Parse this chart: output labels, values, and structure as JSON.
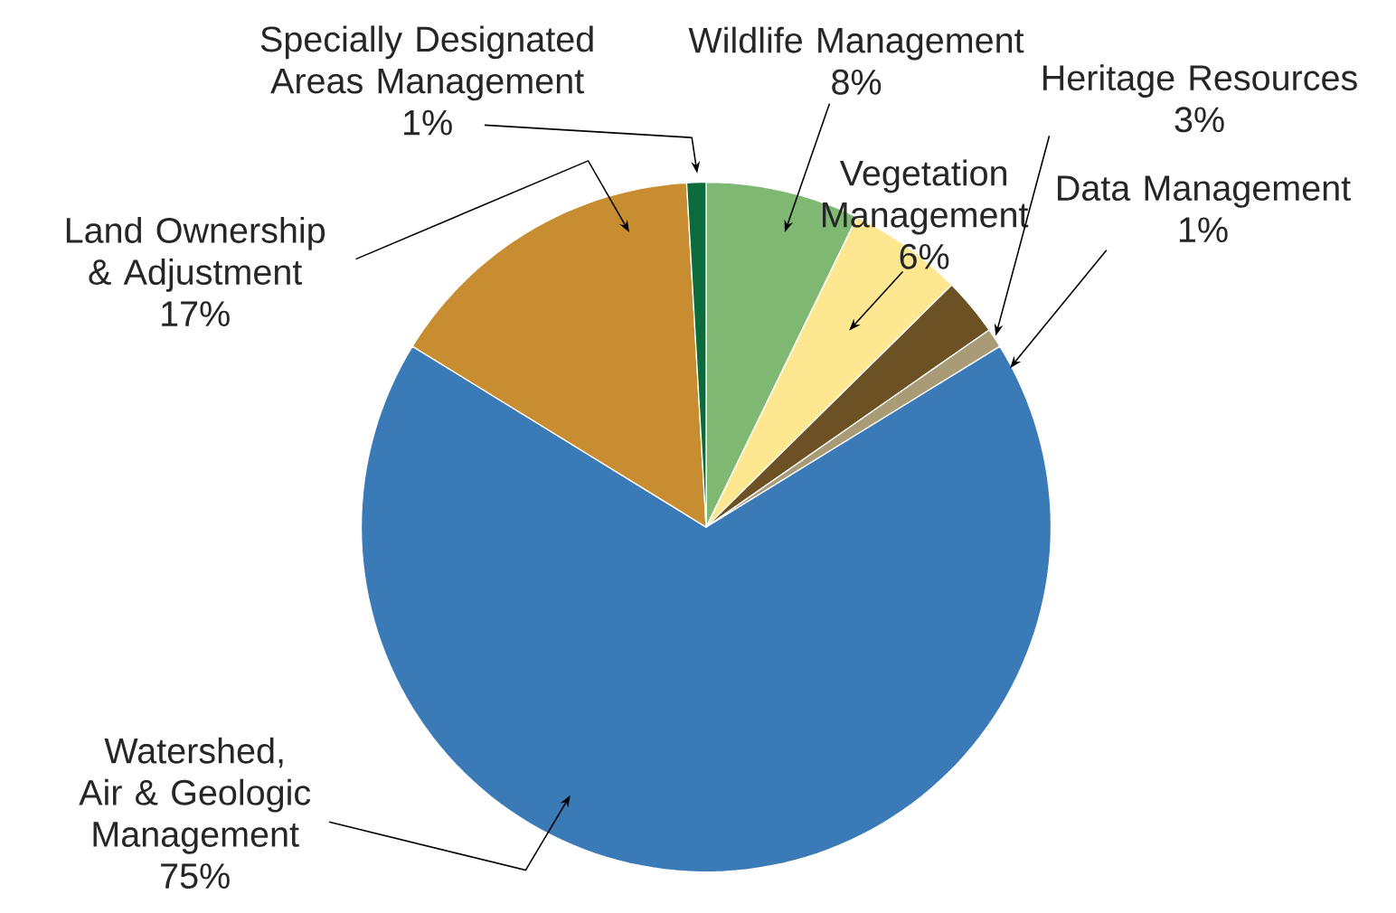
{
  "chart_data": {
    "type": "pie",
    "categories": [
      "Wildlife Management",
      "Vegetation Management",
      "Heritage Resources",
      "Data Management",
      "Watershed, Air & Geologic Management",
      "Land Ownership & Adjustment",
      "Specially Designated Areas Management"
    ],
    "values": [
      8,
      6,
      3,
      1,
      75,
      17,
      1
    ],
    "value_labels": [
      "8%",
      "6%",
      "3%",
      "1%",
      "75%",
      "17%",
      "1%"
    ],
    "colors": [
      "#7fb872",
      "#fde891",
      "#6b5123",
      "#a99b75",
      "#3a7bb7",
      "#c98d31",
      "#0b6b3a"
    ]
  }
}
